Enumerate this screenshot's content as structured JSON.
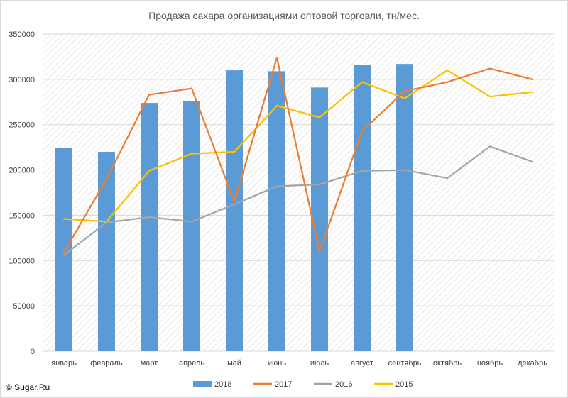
{
  "chart_data": {
    "type": "bar",
    "title": "Продажа сахара организациями оптовой торговли, тн/мес.",
    "xlabel": "",
    "ylabel": "",
    "categories": [
      "январь",
      "февраль",
      "март",
      "апрель",
      "май",
      "июнь",
      "июль",
      "август",
      "сентябрь",
      "октябрь",
      "ноябрь",
      "декабрь"
    ],
    "ylim": [
      0,
      350000
    ],
    "yticks": [
      "0",
      "50000",
      "100000",
      "150000",
      "200000",
      "250000",
      "300000",
      "350000"
    ],
    "grid": true,
    "legend_position": "bottom",
    "series": [
      {
        "name": "2018",
        "type": "bar",
        "color": "#5b9bd5",
        "values": [
          224000,
          220000,
          274000,
          276000,
          310000,
          309000,
          291000,
          316000,
          317000,
          null,
          null,
          null
        ]
      },
      {
        "name": "2017",
        "type": "line",
        "color": "#ed7d31",
        "values": [
          109000,
          190000,
          283000,
          290000,
          165000,
          324000,
          110000,
          243000,
          287000,
          297000,
          312000,
          300000
        ]
      },
      {
        "name": "2016",
        "type": "line",
        "color": "#a5a5a5",
        "values": [
          106000,
          142000,
          148000,
          143000,
          162000,
          182000,
          184000,
          199000,
          200000,
          191000,
          226000,
          209000
        ]
      },
      {
        "name": "2015",
        "type": "line",
        "color": "#ffc000",
        "values": [
          146000,
          143000,
          199000,
          218000,
          220000,
          271000,
          258000,
          297000,
          279000,
          310000,
          281000,
          286000
        ]
      }
    ]
  },
  "footer": {
    "copyright": "© Sugar.Ru"
  }
}
